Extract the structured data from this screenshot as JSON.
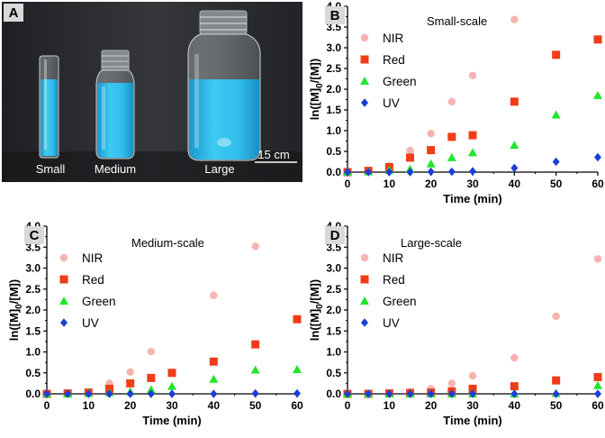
{
  "photo": {
    "panel_label": "A",
    "vial_labels": [
      "Small",
      "Medium",
      "Large"
    ],
    "scale_bar": "15 cm"
  },
  "legend_names": [
    "NIR",
    "Red",
    "Green",
    "UV"
  ],
  "colors": {
    "NIR": "#f7b3b1",
    "Red": "#f03c18",
    "Green": "#22e62a",
    "UV": "#1b3fd6",
    "liquid": "#2cb8e8",
    "photo_bg": "#2a2c30"
  },
  "chart_data": [
    {
      "type": "scatter",
      "panel_label": "B",
      "title": "Small-scale",
      "xlabel": "Time (min)",
      "ylabel_main": "ln([M]",
      "ylabel_sub": "0",
      "ylabel_end": "/[M])",
      "xlim": [
        0,
        60
      ],
      "ylim": [
        0,
        4.0
      ],
      "xticks": [
        "0",
        "10",
        "20",
        "30",
        "40",
        "50",
        "60"
      ],
      "yticks": [
        "0.0",
        "0.5",
        "1.0",
        "1.5",
        "2.0",
        "2.5",
        "3.0",
        "3.5",
        "4.0"
      ],
      "series": [
        {
          "name": "NIR",
          "x": [
            0,
            5,
            10,
            15,
            20,
            25,
            30,
            40
          ],
          "y": [
            0,
            0.05,
            0.15,
            0.52,
            0.93,
            1.7,
            2.33,
            3.68
          ]
        },
        {
          "name": "Red",
          "x": [
            0,
            5,
            10,
            15,
            20,
            25,
            30,
            40,
            50,
            60
          ],
          "y": [
            0,
            0.03,
            0.12,
            0.35,
            0.53,
            0.85,
            0.89,
            1.7,
            2.83,
            3.2
          ]
        },
        {
          "name": "Green",
          "x": [
            0,
            5,
            10,
            15,
            20,
            25,
            30,
            40,
            50,
            60
          ],
          "y": [
            0,
            0.01,
            0.05,
            0.07,
            0.2,
            0.35,
            0.47,
            0.65,
            1.38,
            1.85
          ]
        },
        {
          "name": "UV",
          "x": [
            0,
            5,
            10,
            15,
            20,
            25,
            30,
            40,
            50,
            60
          ],
          "y": [
            0,
            0,
            0,
            0,
            0.01,
            0.01,
            0.02,
            0.1,
            0.25,
            0.36
          ]
        }
      ]
    },
    {
      "type": "scatter",
      "panel_label": "C",
      "title": "Medium-scale",
      "xlabel": "Time (min)",
      "ylabel_main": "ln([M]",
      "ylabel_sub": "0",
      "ylabel_end": "/[M])",
      "xlim": [
        0,
        60
      ],
      "ylim": [
        0,
        4.0
      ],
      "xticks": [
        "0",
        "10",
        "20",
        "30",
        "40",
        "50",
        "60"
      ],
      "yticks": [
        "0.0",
        "0.5",
        "1.0",
        "1.5",
        "2.0",
        "2.5",
        "3.0",
        "3.5",
        "4.0"
      ],
      "series": [
        {
          "name": "NIR",
          "x": [
            0,
            5,
            10,
            15,
            20,
            25,
            40,
            50
          ],
          "y": [
            0,
            0.01,
            0.05,
            0.25,
            0.52,
            1.01,
            2.35,
            3.52
          ]
        },
        {
          "name": "Red",
          "x": [
            0,
            5,
            10,
            15,
            20,
            25,
            30,
            40,
            50,
            60
          ],
          "y": [
            0,
            0.01,
            0.03,
            0.12,
            0.25,
            0.38,
            0.5,
            0.77,
            1.18,
            1.78
          ]
        },
        {
          "name": "Green",
          "x": [
            0,
            5,
            10,
            15,
            20,
            25,
            30,
            40,
            50,
            60
          ],
          "y": [
            0,
            0,
            0.01,
            0.03,
            0.05,
            0.1,
            0.18,
            0.35,
            0.57,
            0.58
          ]
        },
        {
          "name": "UV",
          "x": [
            0,
            5,
            10,
            15,
            20,
            25,
            30,
            40,
            50,
            60
          ],
          "y": [
            0,
            0,
            0,
            0,
            0,
            0,
            0,
            0,
            0.01,
            0.01
          ]
        }
      ]
    },
    {
      "type": "scatter",
      "panel_label": "D",
      "title": "Large-scale",
      "xlabel": "Time (min)",
      "ylabel_main": "ln([M]",
      "ylabel_sub": "0",
      "ylabel_end": "/[M])",
      "xlim": [
        0,
        60
      ],
      "ylim": [
        0,
        4.0
      ],
      "xticks": [
        "0",
        "10",
        "20",
        "30",
        "40",
        "50",
        "60"
      ],
      "yticks": [
        "0.0",
        "0.5",
        "1.0",
        "1.5",
        "2.0",
        "2.5",
        "3.0",
        "3.5",
        "4.0"
      ],
      "series": [
        {
          "name": "NIR",
          "x": [
            0,
            5,
            10,
            15,
            20,
            25,
            30,
            40,
            50,
            60
          ],
          "y": [
            0,
            0.01,
            0.02,
            0.05,
            0.12,
            0.25,
            0.43,
            0.86,
            1.85,
            3.22
          ]
        },
        {
          "name": "Red",
          "x": [
            0,
            5,
            10,
            15,
            20,
            25,
            30,
            40,
            50,
            60
          ],
          "y": [
            0,
            0,
            0.01,
            0.02,
            0.03,
            0.06,
            0.12,
            0.18,
            0.32,
            0.4
          ]
        },
        {
          "name": "Green",
          "x": [
            0,
            5,
            10,
            15,
            20,
            25,
            30,
            40,
            50,
            60
          ],
          "y": [
            0,
            0,
            0,
            0,
            0,
            0,
            0,
            0,
            0.01,
            0.2
          ]
        },
        {
          "name": "UV",
          "x": [
            0,
            5,
            10,
            15,
            20,
            25,
            30,
            40,
            50,
            60
          ],
          "y": [
            0,
            0,
            0,
            0,
            0,
            0,
            0,
            0,
            0,
            0
          ]
        }
      ]
    }
  ]
}
